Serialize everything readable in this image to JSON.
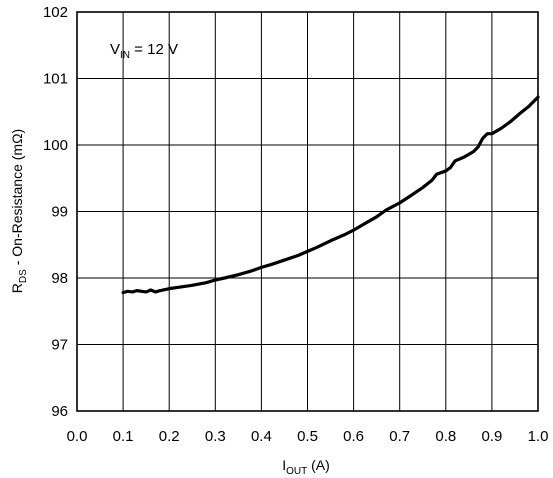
{
  "chart_data": {
    "type": "line",
    "title": "",
    "xlabel": {
      "main": "I",
      "sub": "OUT",
      "suffix": " (A)"
    },
    "ylabel": {
      "main": "R",
      "sub": "DS",
      "suffix": " - On-Resistance (mΩ)"
    },
    "xlim": [
      0.0,
      1.0
    ],
    "ylim": [
      96,
      102
    ],
    "x_ticks": [
      0.0,
      0.1,
      0.2,
      0.3,
      0.4,
      0.5,
      0.6,
      0.7,
      0.8,
      0.9,
      1.0
    ],
    "x_tick_labels": [
      "0.0",
      "0.1",
      "0.2",
      "0.3",
      "0.4",
      "0.5",
      "0.6",
      "0.7",
      "0.8",
      "0.9",
      "1.0"
    ],
    "y_ticks": [
      96,
      97,
      98,
      99,
      100,
      101,
      102
    ],
    "y_tick_labels": [
      "96",
      "97",
      "98",
      "99",
      "100",
      "101",
      "102"
    ],
    "grid": true,
    "annotation": {
      "main": "V",
      "sub": "IN",
      "suffix": " = 12 V"
    },
    "series": [
      {
        "color": "#000000",
        "x": [
          0.1,
          0.11,
          0.12,
          0.13,
          0.14,
          0.15,
          0.16,
          0.17,
          0.18,
          0.2,
          0.22,
          0.25,
          0.28,
          0.3,
          0.32,
          0.35,
          0.38,
          0.4,
          0.42,
          0.45,
          0.48,
          0.5,
          0.52,
          0.55,
          0.58,
          0.6,
          0.62,
          0.65,
          0.67,
          0.7,
          0.72,
          0.75,
          0.77,
          0.78,
          0.8,
          0.81,
          0.82,
          0.84,
          0.86,
          0.87,
          0.88,
          0.89,
          0.9,
          0.92,
          0.94,
          0.96,
          0.98,
          1.0
        ],
        "y": [
          97.78,
          97.8,
          97.79,
          97.81,
          97.8,
          97.79,
          97.82,
          97.79,
          97.81,
          97.84,
          97.86,
          97.89,
          97.93,
          97.97,
          98.0,
          98.05,
          98.11,
          98.16,
          98.2,
          98.27,
          98.34,
          98.4,
          98.46,
          98.56,
          98.65,
          98.72,
          98.8,
          98.92,
          99.02,
          99.13,
          99.22,
          99.36,
          99.47,
          99.56,
          99.61,
          99.66,
          99.76,
          99.82,
          99.9,
          99.97,
          100.1,
          100.17,
          100.17,
          100.25,
          100.35,
          100.47,
          100.58,
          100.72
        ]
      }
    ]
  }
}
